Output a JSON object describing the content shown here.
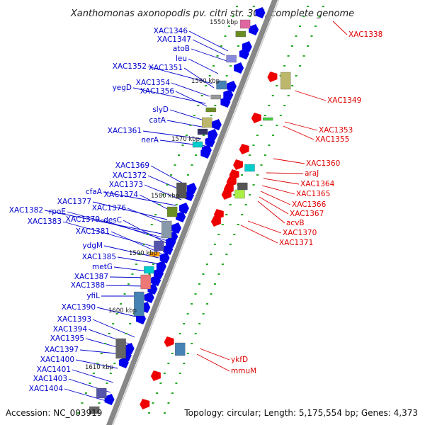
{
  "title": "Xanthomonas axonopodis pv. citri str. 306, complete genome",
  "accession": "Accession: NC_003919",
  "topology": "Topology: circular; Length: 5,175,554 bp; Genes: 4,373",
  "colors": {
    "forward_label": "#0000cc",
    "reverse_label": "#dd0000",
    "forward_gene": "#0000ee",
    "reverse_gene": "#ee0000",
    "backbone": "#888888",
    "tick": "#22aa22"
  },
  "scale_ticks": [
    "1550 kbp",
    "1560 kbp",
    "1570 kbp",
    "1580 kbp",
    "1590 kbp",
    "1600 kbp",
    "1610 kbp"
  ],
  "forward_labels": [
    "XAC1346",
    "XAC1347",
    "atoB",
    "leu",
    "XAC1352",
    "XAC1351",
    "XAC1354",
    "yegD",
    "XAC1356",
    "slyD",
    "catA",
    "XAC1361",
    "nerA",
    "XAC1369",
    "XAC1372",
    "XAC1373",
    "cfaA",
    "XAC1374",
    "XAC1377",
    "XAC1376",
    "XAC1382",
    "rpoE",
    "XAC1379",
    "desC",
    "XAC1383",
    "XAC1381",
    "ydgM",
    "XAC1385",
    "metG",
    "XAC1387",
    "XAC1388",
    "yfiL",
    "XAC1390",
    "XAC1393",
    "XAC1394",
    "XAC1395",
    "XAC1397",
    "XAC1400",
    "XAC1401",
    "XAC1403",
    "XAC1404"
  ],
  "reverse_labels": [
    "XAC1338",
    "XAC1349",
    "XAC1353",
    "XAC1355",
    "XAC1360",
    "araJ",
    "XAC1364",
    "XAC1365",
    "XAC1366",
    "XAC1367",
    "acvB",
    "XAC1370",
    "XAC1371",
    "ykfD",
    "mmuM"
  ]
}
